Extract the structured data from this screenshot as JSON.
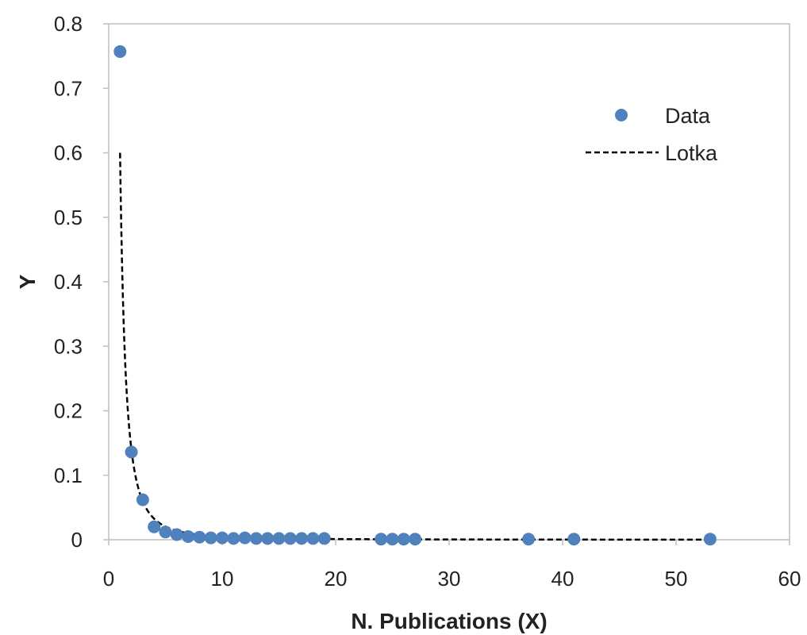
{
  "chart_data": {
    "type": "scatter",
    "title": "",
    "xlabel": "N. Publications (X)",
    "ylabel": "Y",
    "xlim": [
      0,
      60
    ],
    "ylim": [
      0,
      0.8
    ],
    "x_ticks": [
      "0",
      "10",
      "20",
      "30",
      "40",
      "50",
      "60"
    ],
    "y_ticks": [
      "0",
      "0.1",
      "0.2",
      "0.3",
      "0.4",
      "0.5",
      "0.6",
      "0.7",
      "0.8"
    ],
    "grid": false,
    "legend_position": "top-right",
    "series": [
      {
        "name": "Data",
        "kind": "scatter",
        "color": "#4f81bd",
        "points": [
          [
            1,
            0.757
          ],
          [
            2,
            0.136
          ],
          [
            3,
            0.062
          ],
          [
            4,
            0.02
          ],
          [
            5,
            0.012
          ],
          [
            6,
            0.008
          ],
          [
            7,
            0.005
          ],
          [
            8,
            0.004
          ],
          [
            9,
            0.003
          ],
          [
            10,
            0.003
          ],
          [
            11,
            0.002
          ],
          [
            12,
            0.003
          ],
          [
            13,
            0.002
          ],
          [
            14,
            0.002
          ],
          [
            15,
            0.002
          ],
          [
            16,
            0.002
          ],
          [
            17,
            0.002
          ],
          [
            18,
            0.002
          ],
          [
            19,
            0.002
          ],
          [
            24,
            0.001
          ],
          [
            25,
            0.001
          ],
          [
            26,
            0.001
          ],
          [
            27,
            0.001
          ],
          [
            37,
            0.001
          ],
          [
            41,
            0.001
          ],
          [
            53,
            0.001
          ]
        ]
      },
      {
        "name": "Lotka",
        "kind": "line",
        "style": "dashed",
        "color": "#000000",
        "function": "power",
        "coefficient": 0.6,
        "exponent": 2.1,
        "x_range": [
          1,
          53
        ]
      }
    ]
  }
}
